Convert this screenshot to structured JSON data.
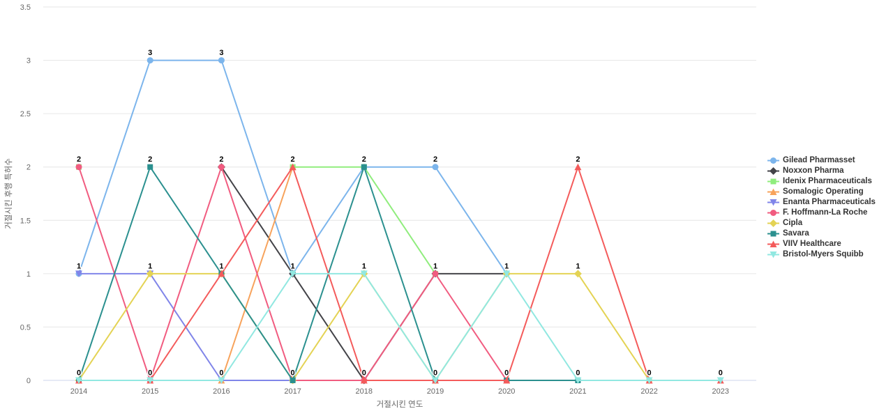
{
  "chart_data": {
    "type": "line",
    "title": "",
    "xlabel": "거절시킨 연도",
    "ylabel": "거절시킨 후행 특허수",
    "x_categories": [
      "2014",
      "2015",
      "2016",
      "2017",
      "2018",
      "2019",
      "2020",
      "2021",
      "2022",
      "2023"
    ],
    "y_ticks": [
      "0",
      "0.5",
      "1",
      "1.5",
      "2",
      "2.5",
      "3",
      "3.5"
    ],
    "ylim": [
      0,
      3.5
    ],
    "grid": "horizontal",
    "legend_position": "right",
    "series": [
      {
        "name": "Gilead Pharmasset",
        "color": "#7cb5ec",
        "marker": "circle",
        "values": [
          1,
          3,
          3,
          1,
          2,
          2,
          1,
          null,
          null,
          null
        ]
      },
      {
        "name": "Noxxon Pharma",
        "color": "#434348",
        "marker": "diamond",
        "values": [
          null,
          null,
          2,
          1,
          0,
          1,
          1,
          null,
          null,
          null
        ]
      },
      {
        "name": "Idenix Pharmaceuticals",
        "color": "#90ed7d",
        "marker": "square",
        "values": [
          2,
          null,
          null,
          2,
          2,
          1,
          null,
          null,
          null,
          null
        ]
      },
      {
        "name": "Somalogic Operating",
        "color": "#f7a35c",
        "marker": "triangle",
        "values": [
          null,
          null,
          0,
          2,
          null,
          null,
          null,
          null,
          null,
          null
        ]
      },
      {
        "name": "Enanta Pharmaceuticals",
        "color": "#8085e9",
        "marker": "triangle-down",
        "values": [
          1,
          1,
          0,
          0,
          null,
          null,
          null,
          null,
          null,
          null
        ]
      },
      {
        "name": "F. Hoffmann-La Roche",
        "color": "#f15c80",
        "marker": "circle",
        "values": [
          2,
          0,
          2,
          0,
          0,
          1,
          0,
          null,
          null,
          null
        ]
      },
      {
        "name": "Cipla",
        "color": "#e4d354",
        "marker": "diamond",
        "values": [
          0,
          1,
          1,
          0,
          1,
          0,
          1,
          1,
          0,
          null
        ]
      },
      {
        "name": "Savara",
        "color": "#2b908f",
        "marker": "square",
        "values": [
          0,
          2,
          1,
          0,
          2,
          0,
          0,
          0,
          null,
          null
        ]
      },
      {
        "name": "VIIV Healthcare",
        "color": "#f45b5b",
        "marker": "triangle",
        "values": [
          0,
          0,
          1,
          2,
          0,
          0,
          0,
          2,
          0,
          0
        ]
      },
      {
        "name": "Bristol-Myers Squibb",
        "color": "#91e8e1",
        "marker": "triangle-down",
        "values": [
          0,
          0,
          0,
          1,
          1,
          0,
          1,
          0,
          0,
          0
        ]
      }
    ],
    "style": {
      "grid_color": "#e6e6e6",
      "axis_line_color": "#ccd6eb",
      "tick_label_color": "#666666",
      "axis_title_color": "#666666",
      "data_label_color": "#000000",
      "legend_text_color": "#333333",
      "background": "#ffffff"
    }
  }
}
